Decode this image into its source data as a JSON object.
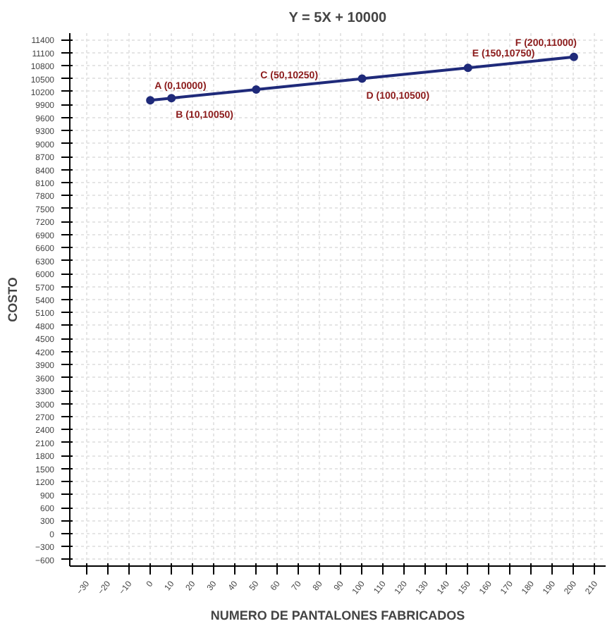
{
  "chart_data": {
    "type": "line",
    "title": "Y = 5X + 10000",
    "xlabel": "NUMERO DE PANTALONES FABRICADOS",
    "ylabel": "COSTO",
    "x": [
      0,
      10,
      50,
      100,
      150,
      200
    ],
    "series": [
      {
        "color": "#1f2a7a",
        "values": [
          10000,
          10050,
          10250,
          10500,
          10750,
          11000
        ]
      }
    ],
    "marker": "circle",
    "line_style": "solid",
    "grid": true,
    "xlim": [
      -38,
      215
    ],
    "xticks": [
      -30,
      -20,
      -10,
      0,
      10,
      20,
      30,
      40,
      50,
      60,
      70,
      80,
      90,
      100,
      110,
      120,
      130,
      140,
      150,
      160,
      170,
      180,
      190,
      200,
      210
    ],
    "ylim": [
      -750,
      11550
    ],
    "yticks": [
      -600,
      -300,
      0,
      300,
      600,
      900,
      1200,
      1500,
      1800,
      2100,
      2400,
      2700,
      3000,
      3300,
      3600,
      3900,
      4200,
      4500,
      4800,
      5100,
      5400,
      5700,
      6000,
      6300,
      6600,
      6900,
      7200,
      7500,
      7800,
      8100,
      8400,
      8700,
      9000,
      9300,
      9600,
      9900,
      10200,
      10500,
      10800,
      11100,
      11400
    ],
    "annotations": [
      {
        "text": "A (0,10000)",
        "x": 0,
        "y": 10000
      },
      {
        "text": "B (10,10050)",
        "x": 10,
        "y": 10050
      },
      {
        "text": "C (50,10250)",
        "x": 50,
        "y": 10250
      },
      {
        "text": "D (100,10500)",
        "x": 100,
        "y": 10500
      },
      {
        "text": "E (150,10750)",
        "x": 150,
        "y": 10750
      },
      {
        "text": "F (200,11000)",
        "x": 200,
        "y": 11000
      }
    ]
  }
}
